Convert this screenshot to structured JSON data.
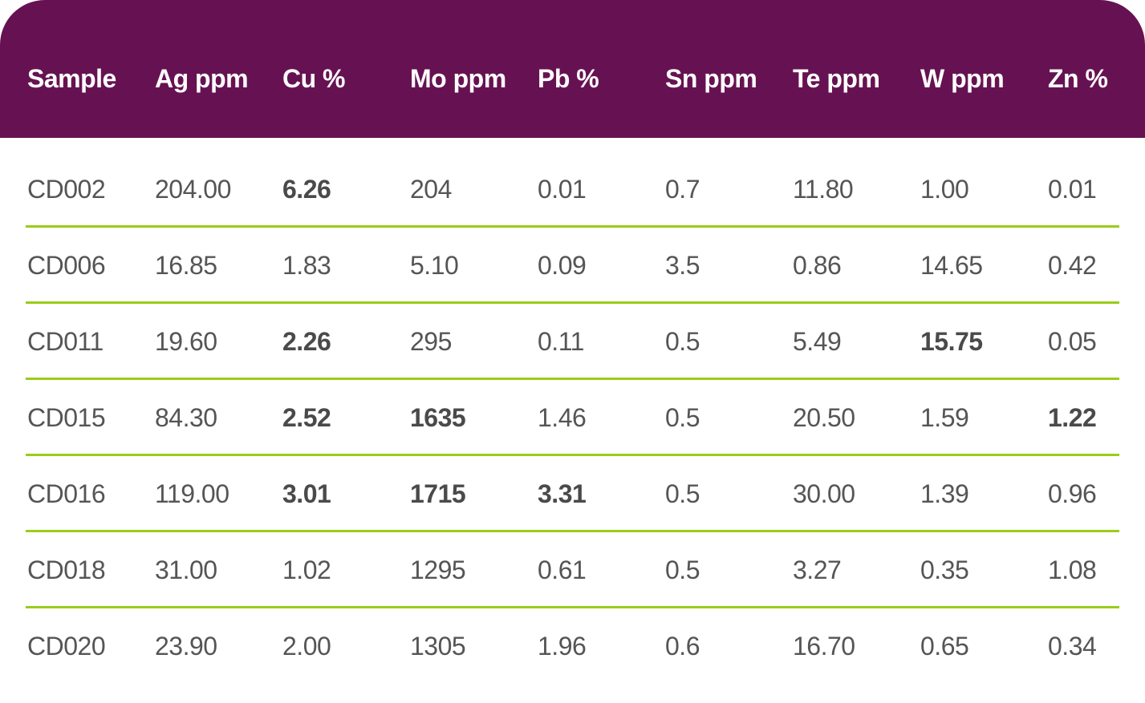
{
  "colors": {
    "header_bg": "#661252",
    "header_text": "#ffffff",
    "divider": "#9bcc19",
    "body_text": "#555555"
  },
  "table": {
    "columns": [
      "Sample",
      "Ag ppm",
      "Cu %",
      "Mo ppm",
      "Pb %",
      "Sn ppm",
      "Te ppm",
      "W ppm",
      "Zn %"
    ],
    "rows": [
      {
        "cells": [
          "CD002",
          "204.00",
          "6.26",
          "204",
          "0.01",
          "0.7",
          "11.80",
          "1.00",
          "0.01"
        ],
        "bold": [
          2
        ]
      },
      {
        "cells": [
          "CD006",
          "16.85",
          "1.83",
          "5.10",
          "0.09",
          "3.5",
          "0.86",
          "14.65",
          "0.42"
        ],
        "bold": []
      },
      {
        "cells": [
          "CD011",
          "19.60",
          "2.26",
          "295",
          "0.11",
          "0.5",
          "5.49",
          "15.75",
          "0.05"
        ],
        "bold": [
          2,
          7
        ]
      },
      {
        "cells": [
          "CD015",
          "84.30",
          "2.52",
          "1635",
          "1.46",
          "0.5",
          "20.50",
          "1.59",
          "1.22"
        ],
        "bold": [
          2,
          3,
          8
        ]
      },
      {
        "cells": [
          "CD016",
          "119.00",
          "3.01",
          "1715",
          "3.31",
          "0.5",
          "30.00",
          "1.39",
          "0.96"
        ],
        "bold": [
          2,
          3,
          4
        ]
      },
      {
        "cells": [
          "CD018",
          "31.00",
          "1.02",
          "1295",
          "0.61",
          "0.5",
          "3.27",
          "0.35",
          "1.08"
        ],
        "bold": []
      },
      {
        "cells": [
          "CD020",
          "23.90",
          "2.00",
          "1305",
          "1.96",
          "0.6",
          "16.70",
          "0.65",
          "0.34"
        ],
        "bold": []
      }
    ]
  }
}
